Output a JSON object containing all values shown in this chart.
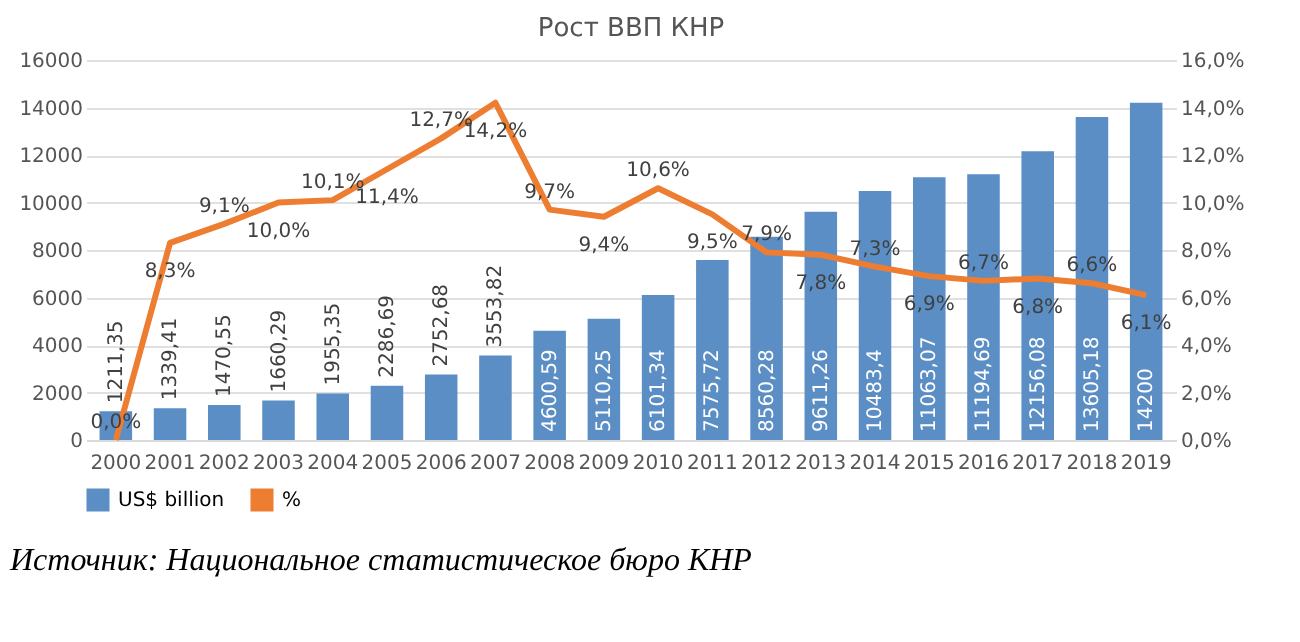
{
  "chart_data": {
    "type": "bar",
    "title": "Рост ВВП КНР",
    "categories": [
      "2000",
      "2001",
      "2002",
      "2003",
      "2004",
      "2005",
      "2006",
      "2007",
      "2008",
      "2009",
      "2010",
      "2011",
      "2012",
      "2013",
      "2014",
      "2015",
      "2016",
      "2017",
      "2018",
      "2019"
    ],
    "series": [
      {
        "name": "US$ billion",
        "color": "#5b8ec4",
        "values": [
          1211.35,
          1339.41,
          1470.55,
          1660.29,
          1955.35,
          2286.69,
          2752.68,
          3553.82,
          4600.59,
          5110.25,
          6101.34,
          7575.72,
          8560.28,
          9611.26,
          10483.4,
          11063.07,
          11194.69,
          12156.08,
          13605.18,
          14200
        ],
        "value_labels": [
          "1211,35",
          "1339,41",
          "1470,55",
          "1660,29",
          "1955,35",
          "2286,69",
          "2752,68",
          "3553,82",
          "4600,59",
          "5110,25",
          "6101,34",
          "7575,72",
          "8560,28",
          "9611,26",
          "10483,4",
          "11063,07",
          "11194,69",
          "12156,08",
          "13605,18",
          "14200"
        ]
      },
      {
        "name": "%",
        "type": "line",
        "axis": "y2",
        "color": "#ed7d31",
        "values": [
          0.0,
          8.3,
          9.1,
          10.0,
          10.1,
          11.4,
          12.7,
          14.2,
          9.7,
          9.4,
          10.6,
          9.5,
          7.9,
          7.8,
          7.3,
          6.9,
          6.7,
          6.8,
          6.6,
          6.1
        ],
        "value_labels": [
          "0,0%",
          "8,3%",
          "9,1%",
          "10,0%",
          "10,1%",
          "11,4%",
          "12,7%",
          "14,2%",
          "9,7%",
          "9,4%",
          "10,6%",
          "9,5%",
          "7,9%",
          "7,8%",
          "7,3%",
          "6,9%",
          "6,7%",
          "6,8%",
          "6,6%",
          "6,1%"
        ]
      }
    ],
    "ylim": [
      0,
      16000
    ],
    "yticks": [
      0,
      2000,
      4000,
      6000,
      8000,
      10000,
      12000,
      14000,
      16000
    ],
    "y2lim": [
      0,
      16
    ],
    "y2ticks": [
      {
        "value": 0,
        "label": "0,0%"
      },
      {
        "value": 2,
        "label": "2,0%"
      },
      {
        "value": 4,
        "label": "4,0%"
      },
      {
        "value": 6,
        "label": "6,0%"
      },
      {
        "value": 8,
        "label": "8,0%"
      },
      {
        "value": 10,
        "label": "10,0%"
      },
      {
        "value": 12,
        "label": "12,0%"
      },
      {
        "value": 14,
        "label": "14,0%"
      },
      {
        "value": 16,
        "label": "16,0%"
      }
    ],
    "grid": "y",
    "legend": "bottom",
    "annotations": [
      "Источник: Национальное статистическое бюро КНР"
    ]
  }
}
